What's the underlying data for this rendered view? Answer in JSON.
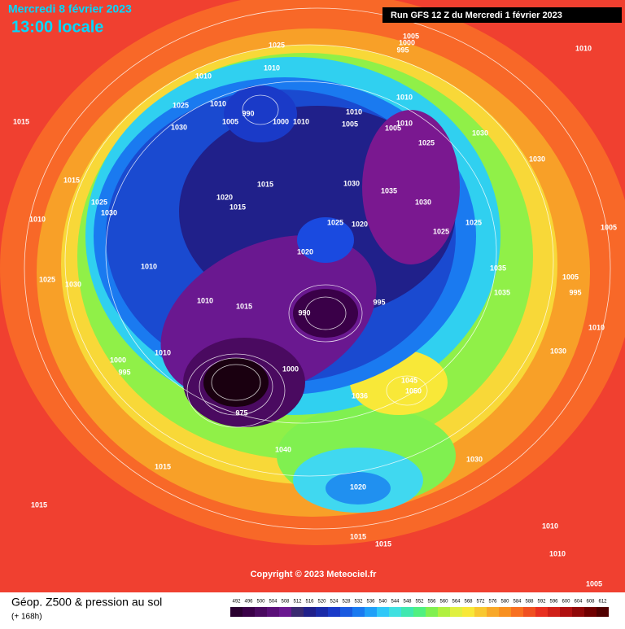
{
  "header": {
    "date": "Mercredi 8 février 2023",
    "time": "13:00 locale",
    "run": "Run GFS 12 Z du Mercredi 1 février 2023"
  },
  "footer": {
    "title": "Géop. Z500 & pression au sol",
    "lead": "(+ 168h)",
    "copyright": "Copyright © 2023 Meteociel.fr"
  },
  "scale": {
    "values": [
      492,
      496,
      500,
      504,
      508,
      512,
      516,
      520,
      524,
      528,
      532,
      536,
      540,
      544,
      548,
      552,
      556,
      560,
      564,
      568,
      572,
      576,
      580,
      584,
      588,
      592,
      596,
      600,
      604,
      608,
      612
    ],
    "colors": [
      "#2a0030",
      "#3a0048",
      "#4a0a60",
      "#5a1078",
      "#6a1890",
      "#3a2a70",
      "#20208a",
      "#1a2aa8",
      "#1a3ac8",
      "#1a5ae0",
      "#1a7af0",
      "#20a0f8",
      "#30c8f8",
      "#40e0e0",
      "#40e8b0",
      "#50f080",
      "#80f050",
      "#b0f040",
      "#e0f040",
      "#f8e838",
      "#f8c830",
      "#f8a828",
      "#f89020",
      "#f87020",
      "#f05020",
      "#e83020",
      "#d02018",
      "#b01010",
      "#900808",
      "#700000",
      "#500000"
    ]
  },
  "isobar_labels": [
    1025,
    1010,
    1010,
    1025,
    1010,
    1015,
    1030,
    990,
    1005,
    1000,
    1010,
    1010,
    1005,
    1010,
    1005,
    1010,
    1025,
    1030,
    1030,
    1015,
    1025,
    1030,
    1010,
    1020,
    1015,
    1015,
    1030,
    1035,
    1030,
    1025,
    1020,
    1020,
    1025,
    1025,
    1010,
    1025,
    1030,
    1035,
    1035,
    1015,
    1010,
    990,
    995,
    1000,
    995,
    1010,
    1000,
    975,
    1036,
    1050,
    1045,
    1040,
    1030,
    1020,
    1015,
    1015,
    1015,
    1015,
    1010,
    1010,
    1005,
    1010,
    1010,
    1030,
    1005,
    1005,
    995,
    1005,
    1000,
    995
  ]
}
